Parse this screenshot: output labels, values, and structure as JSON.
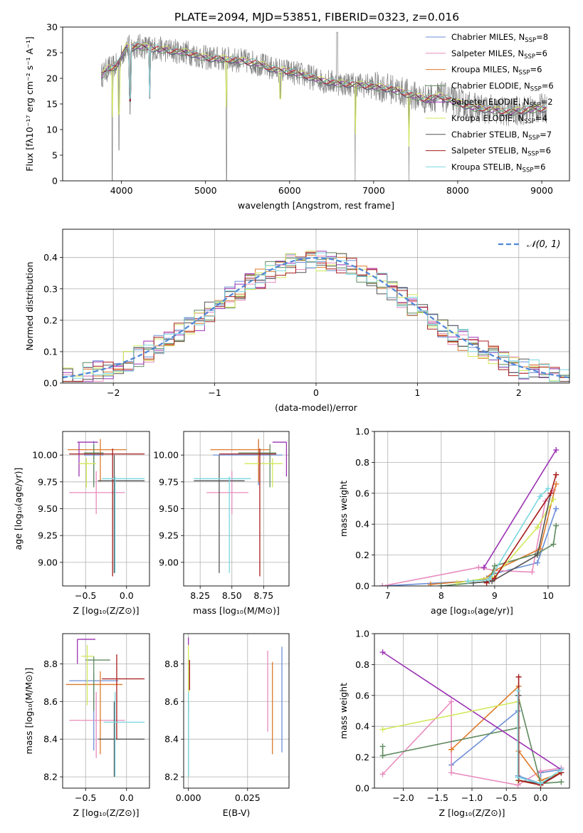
{
  "figure_title": "PLATE=2094, MJD=53851, FIBERID=0323, z=0.016",
  "colors": {
    "Chabrier MILES": "#6b8fd6",
    "Salpeter MILES": "#e88cbe",
    "Kroupa MILES": "#dd7a2a",
    "Chabrier ELODIE": "#5e8a5e",
    "Salpeter ELODIE": "#9b32b3",
    "Kroupa ELODIE": "#d2e85a",
    "Chabrier STELIB": "#555555",
    "Salpeter STELIB": "#a81c1c",
    "Kroupa STELIB": "#7ad7e0",
    "normal_curve": "#4f86d6",
    "data": "#808080"
  },
  "chart_data": [
    {
      "id": "spectrum",
      "type": "line",
      "title": "PLATE=2094, MJD=53851, FIBERID=0323, z=0.016",
      "xlabel": "wavelength [Angstrom, rest frame]",
      "ylabel": "Flux [fλ10⁻¹⁷ erg cm⁻² s⁻¹ A⁻¹]",
      "xlim": [
        3300,
        9330
      ],
      "ylim": [
        0,
        30
      ],
      "xticks": [
        4000,
        5000,
        6000,
        7000,
        8000,
        9000
      ],
      "yticks": [
        0,
        5,
        10,
        15,
        20,
        25,
        30
      ],
      "grid": false,
      "legend_position": "top-right",
      "continuum": {
        "x": [
          3760,
          3850,
          3950,
          4050,
          4200,
          4400,
          4600,
          4800,
          5000,
          5200,
          5400,
          5600,
          5800,
          6000,
          6200,
          6400,
          6600,
          6800,
          7000,
          7200,
          7400,
          7600,
          7800,
          8000,
          8200,
          8400,
          8600,
          8800,
          9060
        ],
        "y": [
          20.5,
          22,
          22.5,
          26,
          26.3,
          25.8,
          25.4,
          25,
          24,
          23.8,
          23.5,
          23,
          21.8,
          21.3,
          20.5,
          19.5,
          19,
          18.8,
          18.4,
          18,
          17,
          16,
          16.5,
          15.2,
          14.3,
          13.9,
          13.4,
          13.8,
          14.2
        ]
      },
      "spikes_down": [
        {
          "x": 3890,
          "y": 0
        },
        {
          "x": 3970,
          "y": 6
        },
        {
          "x": 4102,
          "y": 13
        },
        {
          "x": 4340,
          "y": 16
        },
        {
          "x": 5250,
          "y": 0
        },
        {
          "x": 5890,
          "y": 16
        },
        {
          "x": 6780,
          "y": 0
        },
        {
          "x": 7420,
          "y": 0
        }
      ],
      "series": [
        {
          "name": "Chabrier MILES",
          "label": "Chabrier MILES, N",
          "nssp": "=8"
        },
        {
          "name": "Salpeter MILES",
          "label": "Salpeter MILES, N",
          "nssp": "=6"
        },
        {
          "name": "Kroupa MILES",
          "label": "Kroupa MILES, N",
          "nssp": "=6"
        },
        {
          "name": "Chabrier ELODIE",
          "label": "Chabrier ELODIE, N",
          "nssp": "=6"
        },
        {
          "name": "Salpeter ELODIE",
          "label": "Salpeter ELODIE, N",
          "nssp": "=2"
        },
        {
          "name": "Kroupa ELODIE",
          "label": "Kroupa ELODIE, N",
          "nssp": "=4"
        },
        {
          "name": "Chabrier STELIB",
          "label": "Chabrier STELIB, N",
          "nssp": "=7"
        },
        {
          "name": "Salpeter STELIB",
          "label": "Salpeter STELIB, N",
          "nssp": "=6"
        },
        {
          "name": "Kroupa STELIB",
          "label": "Kroupa STELIB, N",
          "nssp": "=6"
        }
      ],
      "legend_sub": "SSP"
    },
    {
      "id": "residuals",
      "type": "histogram",
      "xlabel": "(data-model)/error",
      "ylabel": "Normed distribution",
      "xlim": [
        -2.5,
        2.5
      ],
      "ylim": [
        0,
        0.49
      ],
      "xticks": [
        -2,
        -1,
        0,
        1,
        2
      ],
      "yticks": [
        0.0,
        0.1,
        0.2,
        0.3,
        0.4
      ],
      "grid": true,
      "legend": "𝒩(0, 1)",
      "legend_position": "top-right",
      "bin_width": 0.1,
      "normal_mu": 0,
      "normal_sigma": 1
    },
    {
      "id": "age-vs-Z",
      "type": "errorbar",
      "xlabel": "Z [log₁₀(Z/Z⊙)]",
      "ylabel": "age  [log₁₀(age/yr)]",
      "xlim": [
        -0.78,
        0.28
      ],
      "ylim": [
        8.78,
        10.22
      ],
      "xticks": [
        -0.5,
        0.0
      ],
      "yticks": [
        9.0,
        9.25,
        9.5,
        9.75,
        10.0
      ],
      "grid": true,
      "points": [
        {
          "name": "Chabrier MILES",
          "x": -0.4,
          "xlo": -0.52,
          "xhi": -0.28,
          "y": 10.0,
          "ylo": 9.72,
          "yhi": 10.13
        },
        {
          "name": "Salpeter MILES",
          "x": -0.37,
          "xlo": -0.7,
          "xhi": -0.02,
          "y": 9.65,
          "ylo": 9.45,
          "yhi": 9.85
        },
        {
          "name": "Kroupa MILES",
          "x": -0.32,
          "xlo": -0.72,
          "xhi": 0.0,
          "y": 10.05,
          "ylo": 9.75,
          "yhi": 10.15
        },
        {
          "name": "Chabrier ELODIE",
          "x": -0.4,
          "xlo": -0.52,
          "xhi": -0.28,
          "y": 10.02,
          "ylo": 9.7,
          "yhi": 10.1
        },
        {
          "name": "Salpeter ELODIE",
          "x": -0.58,
          "xlo": -0.6,
          "xhi": -0.35,
          "y": 10.12,
          "ylo": 9.8,
          "yhi": 10.12
        },
        {
          "name": "Kroupa ELODIE",
          "x": -0.49,
          "xlo": -0.58,
          "xhi": -0.37,
          "y": 9.92,
          "ylo": 9.7,
          "yhi": 9.97
        },
        {
          "name": "Chabrier STELIB",
          "x": -0.15,
          "xlo": -0.35,
          "xhi": 0.22,
          "y": 9.76,
          "ylo": 8.9,
          "yhi": 10.0
        },
        {
          "name": "Salpeter STELIB",
          "x": -0.17,
          "xlo": -0.7,
          "xhi": 0.22,
          "y": 10.01,
          "ylo": 8.87,
          "yhi": 10.06
        },
        {
          "name": "Kroupa STELIB",
          "x": -0.14,
          "xlo": -0.3,
          "xhi": 0.22,
          "y": 9.78,
          "ylo": 8.9,
          "yhi": 9.8
        }
      ]
    },
    {
      "id": "age-vs-mass",
      "type": "errorbar",
      "xlabel": "mass [log₁₀(M/M⊙)]",
      "ylabel": "",
      "xlim": [
        8.12,
        8.95
      ],
      "ylim": [
        8.78,
        10.22
      ],
      "xticks": [
        8.25,
        8.5,
        8.75
      ],
      "yticks": [
        9.0,
        9.25,
        9.5,
        9.75,
        10.0
      ],
      "grid": true,
      "points": [
        {
          "name": "Chabrier MILES",
          "x": 8.71,
          "xlo": 8.35,
          "xhi": 8.9,
          "y": 10.0,
          "ylo": 9.72,
          "yhi": 10.13
        },
        {
          "name": "Salpeter MILES",
          "x": 8.5,
          "xlo": 8.3,
          "xhi": 8.63,
          "y": 9.65,
          "ylo": 9.45,
          "yhi": 9.85
        },
        {
          "name": "Kroupa MILES",
          "x": 8.71,
          "xlo": 8.33,
          "xhi": 8.8,
          "y": 10.05,
          "ylo": 9.75,
          "yhi": 10.15
        },
        {
          "name": "Chabrier ELODIE",
          "x": 8.8,
          "xlo": 8.55,
          "xhi": 8.85,
          "y": 10.02,
          "ylo": 9.7,
          "yhi": 10.1
        },
        {
          "name": "Salpeter ELODIE",
          "x": 8.93,
          "xlo": 8.82,
          "xhi": 8.93,
          "y": 10.12,
          "ylo": 9.8,
          "yhi": 10.12
        },
        {
          "name": "Kroupa ELODIE",
          "x": 8.82,
          "xlo": 8.6,
          "xhi": 8.9,
          "y": 9.92,
          "ylo": 9.7,
          "yhi": 9.97
        },
        {
          "name": "Chabrier STELIB",
          "x": 8.4,
          "xlo": 8.2,
          "xhi": 8.6,
          "y": 9.76,
          "ylo": 8.9,
          "yhi": 10.0
        },
        {
          "name": "Salpeter STELIB",
          "x": 8.72,
          "xlo": 8.4,
          "xhi": 8.85,
          "y": 10.01,
          "ylo": 8.87,
          "yhi": 10.06
        },
        {
          "name": "Kroupa STELIB",
          "x": 8.48,
          "xlo": 8.2,
          "xhi": 8.65,
          "y": 9.78,
          "ylo": 8.9,
          "yhi": 9.8
        }
      ]
    },
    {
      "id": "weight-vs-age",
      "type": "line",
      "xlabel": "age  [log₁₀(age/yr)]",
      "ylabel": "mass weight",
      "xlim": [
        6.75,
        10.4
      ],
      "ylim": [
        0,
        1.0
      ],
      "xticks": [
        7,
        8,
        9,
        10
      ],
      "yticks": [
        0.0,
        0.2,
        0.4,
        0.6,
        0.8,
        1.0
      ],
      "grid": true,
      "series": [
        {
          "name": "Chabrier MILES",
          "x": [
            6.9,
            8.5,
            8.85,
            9.0,
            9.8,
            10.15
          ],
          "y": [
            0.0,
            0.03,
            0.05,
            0.08,
            0.15,
            0.5
          ]
        },
        {
          "name": "Salpeter MILES",
          "x": [
            6.9,
            8.7,
            9.0,
            9.7,
            9.95,
            10.1
          ],
          "y": [
            0.0,
            0.12,
            0.1,
            0.09,
            0.55,
            0.62
          ]
        },
        {
          "name": "Kroupa MILES",
          "x": [
            7.8,
            8.8,
            9.0,
            9.85,
            10.15
          ],
          "y": [
            0.01,
            0.04,
            0.1,
            0.24,
            0.66
          ]
        },
        {
          "name": "Chabrier ELODIE",
          "x": [
            8.0,
            8.9,
            9.0,
            9.8,
            10.1,
            10.15
          ],
          "y": [
            0.0,
            0.03,
            0.13,
            0.21,
            0.27,
            0.39
          ]
        },
        {
          "name": "Salpeter ELODIE",
          "x": [
            8.8,
            10.15
          ],
          "y": [
            0.12,
            0.88
          ]
        },
        {
          "name": "Kroupa ELODIE",
          "x": [
            8.3,
            9.0,
            9.8,
            10.1
          ],
          "y": [
            0.02,
            0.06,
            0.38,
            0.56
          ]
        },
        {
          "name": "Chabrier STELIB",
          "x": [
            8.6,
            8.95,
            9.8,
            10.05
          ],
          "y": [
            0.02,
            0.03,
            0.2,
            0.6
          ]
        },
        {
          "name": "Salpeter STELIB",
          "x": [
            8.85,
            9.0,
            10.05,
            10.15
          ],
          "y": [
            0.02,
            0.05,
            0.6,
            0.72
          ]
        },
        {
          "name": "Kroupa STELIB",
          "x": [
            8.5,
            8.9,
            9.85,
            10.0
          ],
          "y": [
            0.03,
            0.04,
            0.58,
            0.63
          ]
        }
      ]
    },
    {
      "id": "mass-vs-Z",
      "type": "errorbar",
      "xlabel": "Z [log₁₀(Z/Z⊙)]",
      "ylabel": "mass [log₁₀(M/M⊙)]",
      "xlim": [
        -0.78,
        0.28
      ],
      "ylim": [
        8.14,
        8.96
      ],
      "xticks": [
        -0.5,
        0.0
      ],
      "yticks": [
        8.2,
        8.4,
        8.6,
        8.8
      ],
      "grid": true,
      "points": [
        {
          "name": "Chabrier MILES",
          "x": -0.4,
          "xlo": -0.7,
          "xhi": -0.1,
          "y": 8.71,
          "ylo": 8.34,
          "yhi": 8.75
        },
        {
          "name": "Salpeter MILES",
          "x": -0.37,
          "xlo": -0.7,
          "xhi": -0.02,
          "y": 8.5,
          "ylo": 8.3,
          "yhi": 8.65
        },
        {
          "name": "Kroupa MILES",
          "x": -0.32,
          "xlo": -0.74,
          "xhi": -0.05,
          "y": 8.69,
          "ylo": 8.32,
          "yhi": 8.76
        },
        {
          "name": "Chabrier ELODIE",
          "x": -0.4,
          "xlo": -0.5,
          "xhi": -0.2,
          "y": 8.82,
          "ylo": 8.55,
          "yhi": 8.84
        },
        {
          "name": "Salpeter ELODIE",
          "x": -0.6,
          "xlo": -0.6,
          "xhi": -0.38,
          "y": 8.93,
          "ylo": 8.8,
          "yhi": 8.93
        },
        {
          "name": "Kroupa ELODIE",
          "x": -0.48,
          "xlo": -0.55,
          "xhi": -0.4,
          "y": 8.84,
          "ylo": 8.58,
          "yhi": 8.9
        },
        {
          "name": "Chabrier STELIB",
          "x": -0.15,
          "xlo": -0.35,
          "xhi": 0.22,
          "y": 8.4,
          "ylo": 8.2,
          "yhi": 8.6
        },
        {
          "name": "Salpeter STELIB",
          "x": -0.12,
          "xlo": -0.3,
          "xhi": 0.22,
          "y": 8.72,
          "ylo": 8.4,
          "yhi": 8.85
        },
        {
          "name": "Kroupa STELIB",
          "x": -0.14,
          "xlo": -0.28,
          "xhi": 0.22,
          "y": 8.49,
          "ylo": 8.2,
          "yhi": 8.65
        }
      ]
    },
    {
      "id": "mass-vs-ebv",
      "type": "errorbar",
      "xlabel": "E(B-V)",
      "ylabel": "",
      "xlim": [
        -0.002,
        0.0425
      ],
      "ylim": [
        8.14,
        8.96
      ],
      "xticks": [
        0.0,
        0.025
      ],
      "yticks": [
        8.2,
        8.4,
        8.6,
        8.8
      ],
      "grid": true,
      "points": [
        {
          "name": "Chabrier MILES",
          "x": 0.0395,
          "xlo": 0.0395,
          "xhi": 0.0395,
          "y": 8.71,
          "ylo": 8.33,
          "yhi": 8.89
        },
        {
          "name": "Salpeter MILES",
          "x": 0.0335,
          "xlo": 0.0335,
          "xhi": 0.0335,
          "y": 8.6,
          "ylo": 8.44,
          "yhi": 8.87
        },
        {
          "name": "Kroupa MILES",
          "x": 0.0355,
          "xlo": 0.0355,
          "xhi": 0.0355,
          "y": 8.6,
          "ylo": 8.32,
          "yhi": 8.81
        },
        {
          "name": "Chabrier ELODIE",
          "x": 0.0,
          "xlo": 0.0,
          "xhi": 0.0,
          "y": 8.72,
          "ylo": 8.55,
          "yhi": 8.83
        },
        {
          "name": "Salpeter ELODIE",
          "x": 0.0,
          "xlo": 0.0,
          "xhi": 0.0,
          "y": 8.93,
          "ylo": 8.9,
          "yhi": 8.94
        },
        {
          "name": "Kroupa ELODIE",
          "x": 0.0,
          "xlo": 0.0,
          "xhi": 0.0,
          "y": 8.84,
          "ylo": 8.6,
          "yhi": 8.9
        },
        {
          "name": "Chabrier STELIB",
          "x": 0.0,
          "xlo": 0.0,
          "xhi": 0.0,
          "y": 8.4,
          "ylo": 8.2,
          "yhi": 8.6
        },
        {
          "name": "Salpeter STELIB",
          "x": 0.0005,
          "xlo": 0.0005,
          "xhi": 0.0005,
          "y": 8.72,
          "ylo": 8.66,
          "yhi": 8.82
        },
        {
          "name": "Kroupa STELIB",
          "x": 0.0,
          "xlo": 0.0,
          "xhi": 0.0,
          "y": 8.49,
          "ylo": 8.2,
          "yhi": 8.65
        }
      ]
    },
    {
      "id": "weight-vs-Z",
      "type": "line",
      "xlabel": "Z [log₁₀(Z/Z⊙)]",
      "ylabel": "mass weight",
      "xlim": [
        -2.42,
        0.42
      ],
      "ylim": [
        0,
        1.0
      ],
      "xticks": [
        -2.0,
        -1.5,
        -1.0,
        -0.5,
        0.0
      ],
      "yticks": [
        0.0,
        0.2,
        0.4,
        0.6,
        0.8,
        1.0
      ],
      "grid": true,
      "series": [
        {
          "name": "Chabrier MILES",
          "x": [
            -1.3,
            -0.33,
            -0.33,
            0.0,
            0.0,
            0.3
          ],
          "y": [
            0.15,
            0.5,
            0.08,
            0.03,
            0.1,
            0.12
          ]
        },
        {
          "name": "Salpeter MILES",
          "x": [
            -2.3,
            -1.3,
            -1.3,
            -0.33,
            0.0,
            0.3
          ],
          "y": [
            0.09,
            0.56,
            0.1,
            0.02,
            0.11,
            0.13
          ]
        },
        {
          "name": "Kroupa MILES",
          "x": [
            -1.3,
            -0.32,
            -0.32,
            0.0,
            0.3
          ],
          "y": [
            0.25,
            0.66,
            0.24,
            0.05,
            0.1
          ]
        },
        {
          "name": "Chabrier ELODIE",
          "x": [
            -2.3,
            -2.3,
            -0.33,
            -0.33,
            0.0,
            0.3
          ],
          "y": [
            0.27,
            0.21,
            0.39,
            0.6,
            0.03,
            0.04
          ]
        },
        {
          "name": "Salpeter ELODIE",
          "x": [
            -2.3,
            0.3
          ],
          "y": [
            0.88,
            0.12
          ]
        },
        {
          "name": "Kroupa ELODIE",
          "x": [
            -2.3,
            -0.33,
            -0.33,
            0.0
          ],
          "y": [
            0.38,
            0.56,
            0.05,
            0.02
          ]
        },
        {
          "name": "Chabrier STELIB",
          "x": [
            -0.32,
            -0.32,
            0.0,
            0.3
          ],
          "y": [
            0.6,
            0.05,
            0.03,
            0.1
          ]
        },
        {
          "name": "Salpeter STELIB",
          "x": [
            -0.32,
            -0.32,
            0.0,
            0.3
          ],
          "y": [
            0.72,
            0.05,
            0.02,
            0.1
          ]
        },
        {
          "name": "Kroupa STELIB",
          "x": [
            -0.33,
            -0.33,
            0.0,
            0.3
          ],
          "y": [
            0.63,
            0.07,
            0.03,
            0.12
          ]
        }
      ]
    }
  ]
}
